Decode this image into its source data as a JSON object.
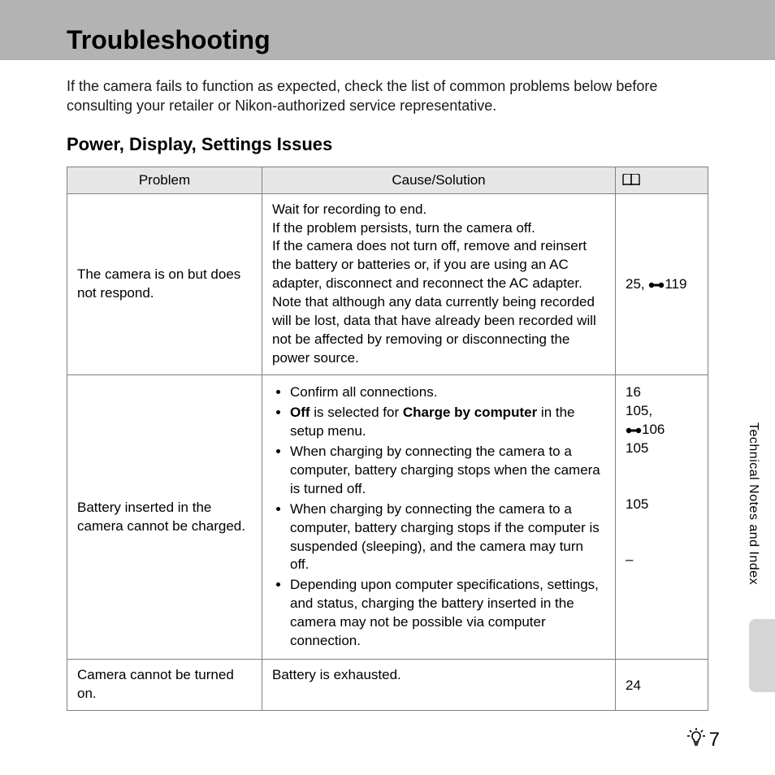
{
  "header": {
    "title": "Troubleshooting"
  },
  "intro": "If the camera fails to function as expected, check the list of common problems below before consulting your retailer or Nikon-authorized service representative.",
  "section_title": "Power, Display, Settings Issues",
  "table": {
    "headers": {
      "problem": "Problem",
      "solution": "Cause/Solution",
      "page": "📖"
    },
    "col_widths": {
      "problem": 240,
      "solution": "auto",
      "page": 114
    },
    "header_bg": "#e6e6e6",
    "border_color": "#808080"
  },
  "rows": [
    {
      "problem": "The camera is on but does not respond.",
      "solution_type": "text",
      "solution_text": "Wait for recording to end.\nIf the problem persists, turn the camera off.\nIf the camera does not turn off, remove and reinsert the battery or batteries or, if you are using an AC adapter, disconnect and reconnect the AC adapter. Note that although any data currently being recorded will be lost, data that have already been recorded will not be affected by removing or disconnecting the power source.",
      "page_ref_html": "25, <svg class='ref-icon' width='20' height='12' viewBox='0 0 20 12'><circle cx='4' cy='6' r='3.2' fill='#000'/><circle cx='16' cy='6' r='3.2' fill='#000'/><rect x='4' y='4.5' width='12' height='3' fill='#000'/></svg>119"
    },
    {
      "problem": "Battery inserted in the camera cannot be charged.",
      "solution_type": "list",
      "solution_items": [
        "Confirm all connections.",
        "<b>Off</b> is selected for <b>Charge by computer</b> in the setup menu.",
        "When charging by connecting the camera to a computer, battery charging stops when the camera is turned off.",
        "When charging by connecting the camera to a computer, battery charging stops if the computer is suspended (sleeping), and the camera may turn off.",
        "Depending upon computer specifications, settings, and status, charging the battery inserted in the camera may not be possible via computer connection."
      ],
      "page_ref_html": "16<br>105,<br><svg class='ref-icon' width='20' height='12' viewBox='0 0 20 12'><circle cx='4' cy='6' r='3.2' fill='#000'/><circle cx='16' cy='6' r='3.2' fill='#000'/><rect x='4' y='4.5' width='12' height='3' fill='#000'/></svg>106<br>105<br><br><br>105<br><br><br>–"
    },
    {
      "problem": "Camera cannot be turned on.",
      "solution_type": "text",
      "solution_text": "Battery is exhausted.",
      "page_ref_html": "24"
    }
  ],
  "side_tab": "Technical Notes and Index",
  "side_tab_bg": "#d5d5d5",
  "page_number": "7",
  "colors": {
    "header_bar": "#b3b3b3",
    "text": "#1a1a1a",
    "background": "#ffffff"
  },
  "fonts": {
    "title_size": 32,
    "title_weight": 700,
    "section_size": 22,
    "section_weight": 700,
    "body_size": 18,
    "table_size": 17,
    "page_num_size": 24
  }
}
